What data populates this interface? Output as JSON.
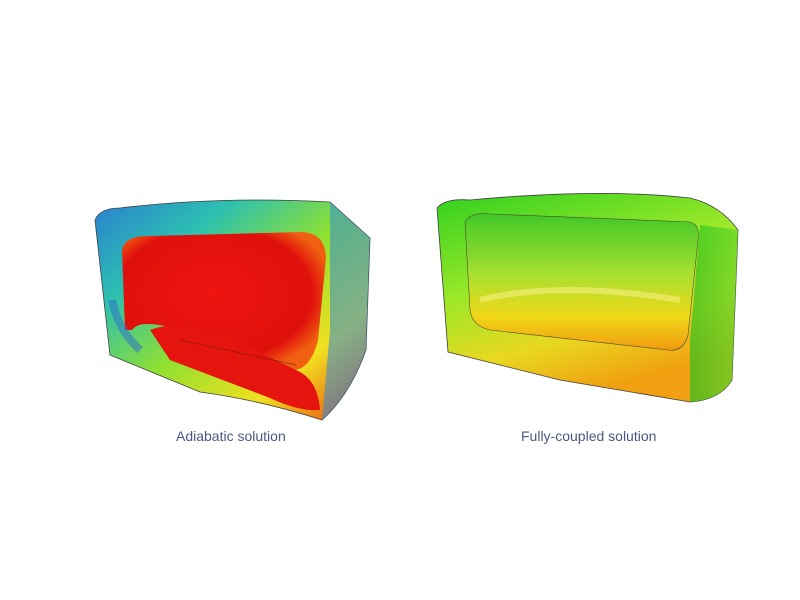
{
  "figures": [
    {
      "caption": "Adiabatic solution",
      "colormap": "red-core-blue-edges"
    },
    {
      "caption": "Fully-coupled solution",
      "colormap": "green-yellow-orange"
    }
  ],
  "colors": {
    "caption_text": "#4b5887",
    "hot": "#e8120e",
    "warm": "#f5a000",
    "mid": "#7de020",
    "cool": "#1fb5c8",
    "cold": "#2a63c9"
  }
}
